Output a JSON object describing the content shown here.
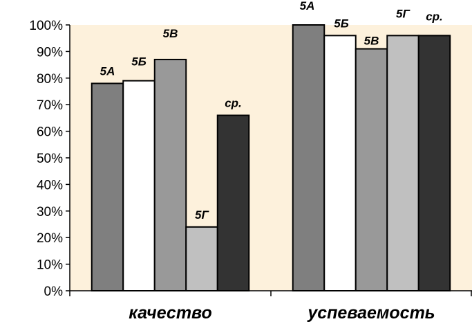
{
  "chart_data": {
    "type": "bar",
    "categories": [
      "качество",
      "успеваемость"
    ],
    "series": [
      {
        "name": "5А",
        "values": [
          78,
          100
        ],
        "color": "#7f7f7f"
      },
      {
        "name": "5Б",
        "values": [
          79,
          96
        ],
        "color": "#ffffff"
      },
      {
        "name": "5В",
        "values": [
          87,
          91
        ],
        "color": "#999999"
      },
      {
        "name": "5Г",
        "values": [
          24,
          96
        ],
        "color": "#c0c0c0"
      },
      {
        "name": "ср.",
        "values": [
          66,
          96
        ],
        "color": "#333333"
      }
    ],
    "y_ticks": [
      "0%",
      "10%",
      "20%",
      "30%",
      "40%",
      "50%",
      "60%",
      "70%",
      "80%",
      "90%",
      "100%"
    ],
    "ylim": [
      0,
      100
    ],
    "plot_background": "#fdf1dc",
    "grid": false,
    "legend": "none"
  }
}
